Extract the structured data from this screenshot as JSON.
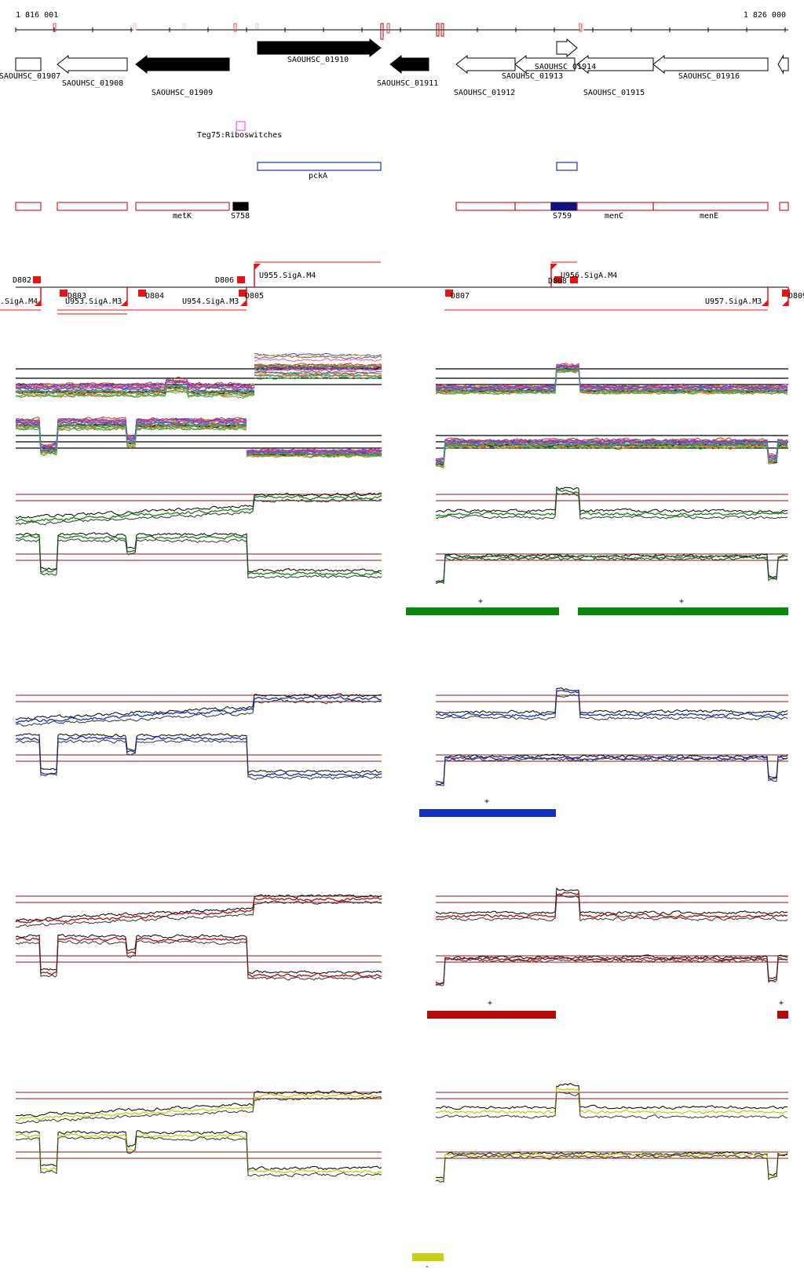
{
  "coords": {
    "start": "1 816 001",
    "end": "1 826 000"
  },
  "colors": {
    "gene_sense": "#000000",
    "riboswitch": "#e040e0",
    "operon": "#2030c0",
    "segment": "#e02020",
    "segment_fill": "#000000",
    "segment_fill_alt": "#101080",
    "promoter": "#ee1111",
    "cond1": "#0a8a0a",
    "cond2": "#1030c8",
    "cond3": "#b80a0a",
    "cond4": "#c8d010",
    "threshold": "#a01010"
  },
  "genes": [
    {
      "label": "SAOUHSC_01907",
      "dir": "right",
      "filled": false
    },
    {
      "label": "SAOUHSC_01908",
      "dir": "left",
      "filled": false
    },
    {
      "label": "SAOUHSC_01909",
      "dir": "left",
      "filled": true
    },
    {
      "label": "SAOUHSC_01910",
      "dir": "right",
      "filled": true
    },
    {
      "label": "SAOUHSC_01911",
      "dir": "left",
      "filled": true
    },
    {
      "label": "SAOUHSC_01912",
      "dir": "left",
      "filled": false
    },
    {
      "label": "SAOUHSC_01913",
      "dir": "left",
      "filled": false
    },
    {
      "label": "SAOUHSC_01914",
      "dir": "right",
      "filled": false
    },
    {
      "label": "SAOUHSC_01915",
      "dir": "left",
      "filled": false
    },
    {
      "label": "SAOUHSC_01916",
      "dir": "left",
      "filled": false
    },
    {
      "label": "",
      "dir": "left",
      "filled": false
    }
  ],
  "riboswitch": {
    "label": "Teg75:Riboswitches"
  },
  "operons": [
    {
      "label": "pckA"
    },
    {
      "label": ""
    }
  ],
  "segments": [
    {
      "label": "",
      "fill": "none"
    },
    {
      "label": "",
      "fill": "none"
    },
    {
      "label": "metK",
      "fill": "none"
    },
    {
      "label": "S758",
      "fill": "black"
    },
    {
      "label": "",
      "fill": "none"
    },
    {
      "label": "",
      "fill": "none"
    },
    {
      "label": "S759",
      "fill": "navy"
    },
    {
      "label": "menC",
      "fill": "none"
    },
    {
      "label": "menE",
      "fill": "none"
    },
    {
      "label": "",
      "fill": "none"
    }
  ],
  "promoters": [
    {
      "label": "D802"
    },
    {
      "label": ".SigA.M4"
    },
    {
      "label": "D803"
    },
    {
      "label": "U953.SigA.M3"
    },
    {
      "label": "D804"
    },
    {
      "label": "U954.SigA.M3"
    },
    {
      "label": "D806"
    },
    {
      "label": "D805"
    },
    {
      "label": "U955.SigA.M4"
    },
    {
      "label": "D807"
    },
    {
      "label": "D808"
    },
    {
      "label": "U956.SigA.M4"
    },
    {
      "label": "U957.SigA.M3"
    },
    {
      "label": "D809"
    }
  ],
  "conditions": [
    {
      "name": "",
      "color_key": "cond1",
      "bars": [
        {
          "sign": "+"
        },
        {
          "sign": "+"
        }
      ]
    },
    {
      "name": "",
      "color_key": "cond2",
      "bars": [
        {
          "sign": "+"
        }
      ]
    },
    {
      "name": "",
      "color_key": "cond3",
      "bars": [
        {
          "sign": "+"
        },
        {
          "sign": "+"
        }
      ]
    },
    {
      "name": "",
      "color_key": "cond4",
      "bars": [
        {
          "sign": "-"
        }
      ]
    }
  ]
}
